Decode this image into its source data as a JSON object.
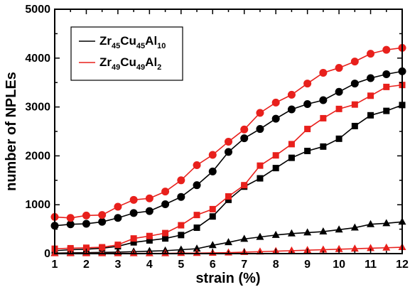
{
  "chart_data": {
    "type": "line",
    "title": "",
    "xlabel": "strain (%)",
    "ylabel": "number of NPLEs",
    "xlim": [
      1,
      12
    ],
    "ylim": [
      0,
      5000
    ],
    "xticks": [
      1,
      2,
      3,
      4,
      5,
      6,
      7,
      8,
      9,
      10,
      11,
      12
    ],
    "yticks": [
      0,
      1000,
      2000,
      3000,
      4000,
      5000
    ],
    "x": [
      1,
      1.5,
      2,
      2.5,
      3,
      3.5,
      4,
      4.5,
      5,
      5.5,
      6,
      6.5,
      7,
      7.5,
      8,
      8.5,
      9,
      9.5,
      10,
      10.5,
      11,
      11.5,
      12
    ],
    "grid": false,
    "legend_position": "top-left",
    "legend": [
      {
        "label": {
          "base1": "Zr",
          "sub1": "45",
          "base2": "Cu",
          "sub2": "45",
          "base3": "Al",
          "sub3": "10"
        },
        "color": "#000000"
      },
      {
        "label": {
          "base1": "Zr",
          "sub1": "49",
          "base2": "Cu",
          "sub2": "49",
          "base3": "Al",
          "sub3": "2"
        },
        "color": "#e8201c"
      }
    ],
    "series": [
      {
        "alloy_index": 0,
        "color": "#000000",
        "marker": "circle",
        "values": [
          570,
          600,
          610,
          650,
          730,
          830,
          870,
          1010,
          1160,
          1400,
          1680,
          2080,
          2360,
          2550,
          2760,
          2950,
          3060,
          3140,
          3310,
          3480,
          3590,
          3670,
          3730
        ]
      },
      {
        "alloy_index": 0,
        "color": "#000000",
        "marker": "square",
        "values": [
          60,
          80,
          90,
          110,
          150,
          230,
          270,
          310,
          380,
          530,
          760,
          1100,
          1370,
          1540,
          1750,
          1960,
          2100,
          2190,
          2350,
          2610,
          2830,
          2920,
          3040
        ]
      },
      {
        "alloy_index": 0,
        "color": "#000000",
        "marker": "triangle",
        "values": [
          10,
          15,
          20,
          25,
          30,
          40,
          50,
          60,
          80,
          100,
          170,
          230,
          300,
          340,
          380,
          410,
          430,
          450,
          490,
          530,
          600,
          620,
          650
        ]
      },
      {
        "alloy_index": 1,
        "color": "#e8201c",
        "marker": "circle",
        "values": [
          750,
          730,
          780,
          790,
          960,
          1100,
          1130,
          1270,
          1500,
          1810,
          2020,
          2290,
          2540,
          2880,
          3090,
          3250,
          3480,
          3700,
          3800,
          3930,
          4090,
          4170,
          4210
        ]
      },
      {
        "alloy_index": 1,
        "color": "#e8201c",
        "marker": "square",
        "values": [
          100,
          110,
          120,
          130,
          180,
          310,
          360,
          420,
          580,
          790,
          910,
          1170,
          1400,
          1800,
          2010,
          2240,
          2550,
          2770,
          2960,
          3050,
          3230,
          3410,
          3450
        ]
      },
      {
        "alloy_index": 1,
        "color": "#e8201c",
        "marker": "triangle",
        "values": [
          5,
          5,
          5,
          5,
          5,
          5,
          5,
          5,
          10,
          10,
          15,
          20,
          30,
          40,
          50,
          60,
          70,
          80,
          90,
          100,
          110,
          120,
          130
        ]
      }
    ]
  }
}
